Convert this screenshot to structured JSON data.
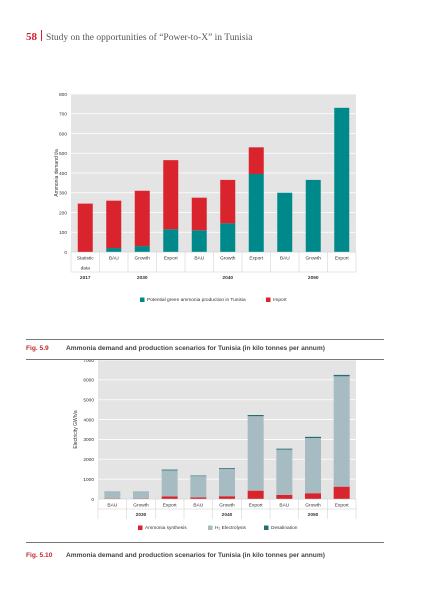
{
  "header": {
    "page_number": "58",
    "title": "Study on the opportunities of “Power-to-X” in Tunisia"
  },
  "colors": {
    "red": "#d9232d",
    "teal": "#00898a",
    "grey": "#a7bcc2",
    "darkteal": "#1f6f73",
    "plot_bg": "#e4e4e4"
  },
  "figures": [
    {
      "label": "Fig. 5.9",
      "caption": "Ammonia demand and production scenarios for Tunisia (in kilo tonnes per annum)"
    },
    {
      "label": "Fig. 5.10",
      "caption": "Ammonia demand and production scenarios for Tunisia (in kilo tonnes per annum)"
    }
  ],
  "chart_data": [
    {
      "type": "bar",
      "stacked": true,
      "ylabel": "Ammonia demand t/a",
      "ylim": [
        0,
        800
      ],
      "yticks": [
        "0",
        "100",
        "200",
        "300",
        "400",
        "500",
        "600",
        "700",
        "800"
      ],
      "categories": [
        "Statistic data",
        "BAU",
        "Growth",
        "Export",
        "BAU",
        "Growth",
        "Export",
        "BAU",
        "Growth",
        "Export"
      ],
      "groups": [
        {
          "label": "2017",
          "span": 1
        },
        {
          "label": "2030",
          "span": 3
        },
        {
          "label": "2040",
          "span": 3
        },
        {
          "label": "2050",
          "span": 3
        }
      ],
      "series": [
        {
          "name": "Potential green ammonia production in Tunisia",
          "values": [
            0,
            20,
            30,
            115,
            110,
            145,
            395,
            300,
            365,
            730
          ]
        },
        {
          "name": "Import",
          "values": [
            245,
            240,
            280,
            350,
            165,
            220,
            135,
            0,
            0,
            0
          ]
        }
      ],
      "legend_position": "bottom"
    },
    {
      "type": "bar",
      "stacked": true,
      "ylabel": "Electricity GWh/a",
      "ylim": [
        0,
        7000
      ],
      "yticks": [
        "0",
        "1000",
        "2000",
        "3000",
        "4000",
        "5000",
        "6000",
        "7000"
      ],
      "categories": [
        "BAU",
        "Growth",
        "Export",
        "BAU",
        "Growth",
        "Export",
        "BAU",
        "Growth",
        "Export"
      ],
      "groups": [
        {
          "label": "2030",
          "span": 3
        },
        {
          "label": "2040",
          "span": 3
        },
        {
          "label": "2050",
          "span": 3
        }
      ],
      "series": [
        {
          "name": "Ammonia synthesis",
          "values": [
            20,
            20,
            130,
            80,
            140,
            420,
            210,
            290,
            620
          ]
        },
        {
          "name": "H₂ Electrolysis",
          "values": [
            330,
            330,
            1310,
            1070,
            1370,
            3750,
            2280,
            2780,
            5560
          ]
        },
        {
          "name": "Desalination",
          "values": [
            15,
            15,
            40,
            30,
            40,
            60,
            45,
            60,
            70
          ]
        }
      ],
      "legend_position": "bottom"
    }
  ]
}
